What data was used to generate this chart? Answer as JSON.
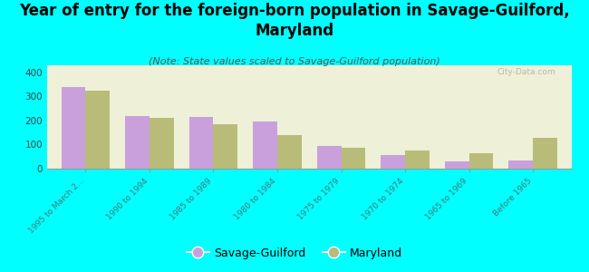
{
  "title": "Year of entry for the foreign-born population in Savage-Guilford,\nMaryland",
  "subtitle": "(Note: State values scaled to Savage-Guilford population)",
  "categories": [
    "1995 to March 2...",
    "1990 to 1994",
    "1985 to 1989",
    "1980 to 1984",
    "1975 to 1979",
    "1970 to 1974",
    "1965 to 1969",
    "Before 1965"
  ],
  "savage_guilford": [
    340,
    220,
    215,
    195,
    95,
    55,
    30,
    35
  ],
  "maryland": [
    325,
    210,
    185,
    140,
    85,
    75,
    65,
    130
  ],
  "bar_color_sg": "#c9a0dc",
  "bar_color_md": "#b8bc78",
  "background_color": "#00ffff",
  "plot_bg_color": "#eef0d8",
  "ylim": [
    0,
    430
  ],
  "yticks": [
    0,
    100,
    200,
    300,
    400
  ],
  "legend_label_sg": "Savage-Guilford",
  "legend_label_md": "Maryland",
  "title_fontsize": 12,
  "subtitle_fontsize": 8,
  "watermark": "City-Data.com"
}
